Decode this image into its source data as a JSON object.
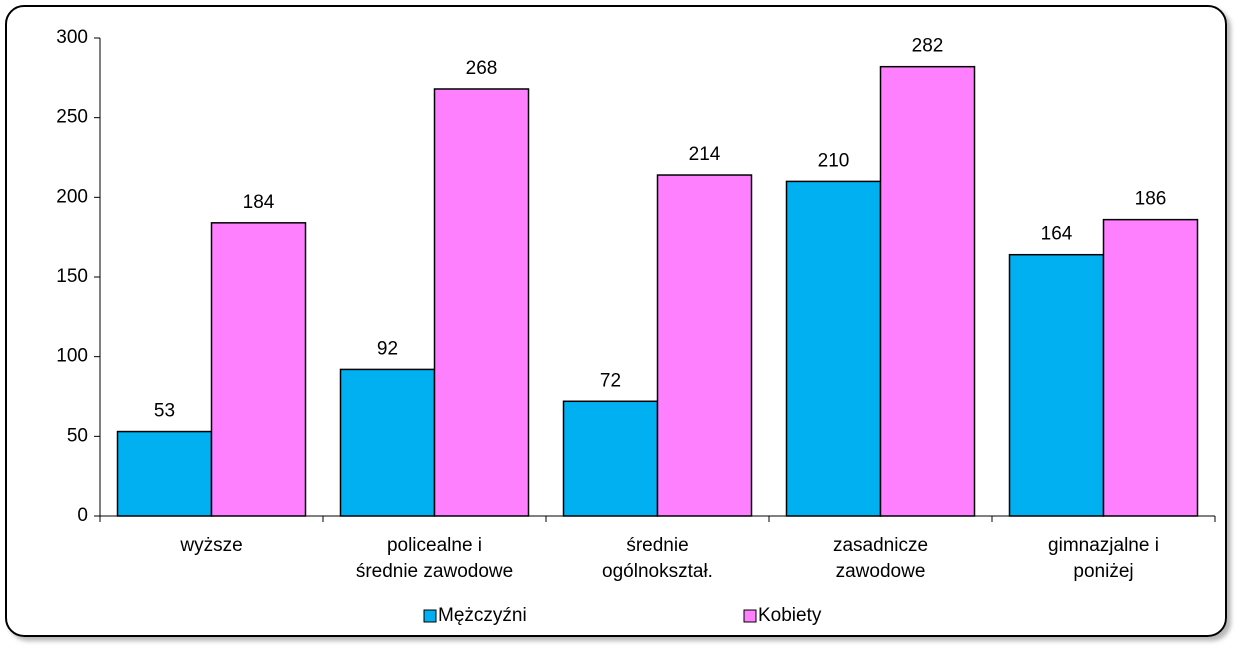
{
  "chart_data": {
    "type": "bar",
    "categories": [
      [
        "wyższe"
      ],
      [
        "policealne i",
        "średnie zawodowe"
      ],
      [
        "średnie",
        "ogólnokształ."
      ],
      [
        "zasadnicze",
        "zawodowe"
      ],
      [
        "gimnazjalne i",
        "poniżej"
      ]
    ],
    "series": [
      {
        "name": "Mężczyźni",
        "color": "#00b0f0",
        "values": [
          53,
          92,
          72,
          210,
          164
        ]
      },
      {
        "name": "Kobiety",
        "color": "#ff80ff",
        "values": [
          184,
          268,
          214,
          282,
          186
        ]
      }
    ],
    "ylim": [
      0,
      300
    ],
    "yticks": [
      0,
      50,
      100,
      150,
      200,
      250,
      300
    ],
    "grid": false,
    "legend": "bottom"
  }
}
